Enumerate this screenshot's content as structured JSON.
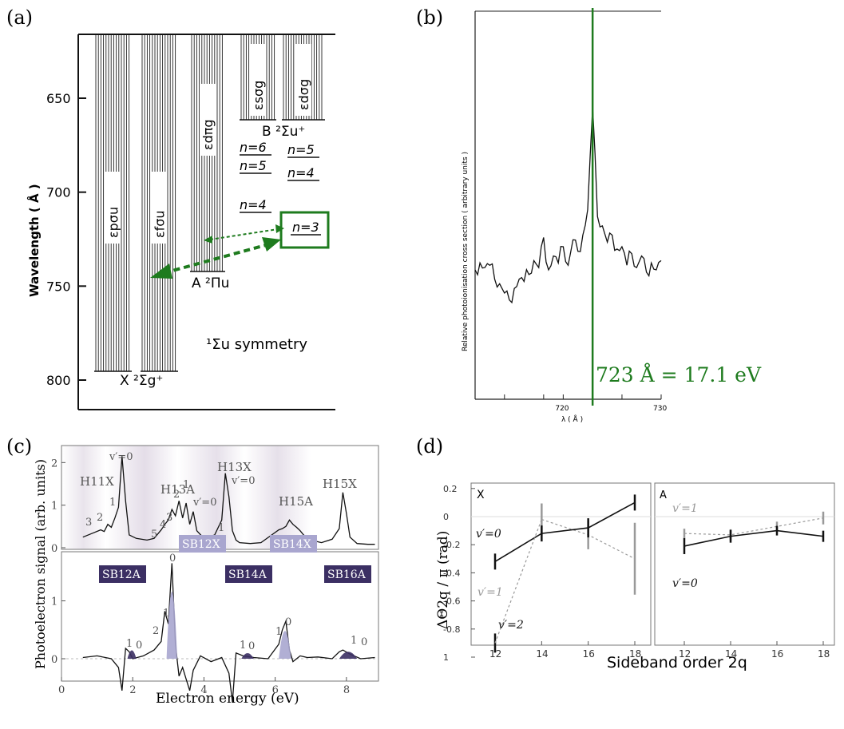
{
  "panels": {
    "a": {
      "label": "(a)",
      "ylabel": "Wavelength ( Å )",
      "yticks": [
        "650",
        "700",
        "750",
        "800"
      ],
      "ytick_values": [
        650,
        700,
        750,
        800
      ],
      "continua": [
        "εpσu",
        "εfσu",
        "εdπg",
        "εsσg",
        "εdσg"
      ],
      "state_X": "X ²Σg⁺",
      "state_A": "A ²Πu",
      "state_B": "B ²Σu⁺",
      "rydberg_left": [
        "n=6",
        "n=5",
        "n=4"
      ],
      "rydberg_right": [
        "n=5",
        "n=4",
        "n=3"
      ],
      "symmetry": "¹Σu symmetry",
      "highlight": "n=3",
      "accent": "#1e7b1e"
    },
    "b": {
      "label": "(b)",
      "ylabel": "Relative photoionisation cross section ( arbitrary units )",
      "xlabel": "λ ( Å )",
      "xticks": [
        "720",
        "730"
      ],
      "annotation": "723 Å = 17.1 eV",
      "accent": "#1e7b1e"
    },
    "c": {
      "label": "(c)",
      "ylabel": "Photoelectron signal (arb. units)",
      "xlabel": "Electron energy (eV)",
      "xticks": [
        "0",
        "2",
        "4",
        "6",
        "8"
      ],
      "top_yticks": [
        "0",
        "1",
        "2"
      ],
      "bottom_yticks": [
        "0",
        "1"
      ],
      "harmonics": [
        "H11X",
        "H13A",
        "H13X",
        "H15A",
        "H15X"
      ],
      "vib_labels": [
        "3",
        "2",
        "1",
        "v′=0",
        "5",
        "4",
        "3",
        "2",
        "1",
        "v′=0",
        "v′=0",
        "1"
      ],
      "sidebands_dark": [
        "SB12A",
        "SB14A",
        "SB16A"
      ],
      "sidebands_light": [
        "SB12X",
        "SB14X"
      ],
      "sb_vib": [
        "1",
        "0",
        "2",
        "1",
        "0",
        "1",
        "0",
        "1",
        "0",
        "1",
        "0"
      ],
      "dark_color": "#3b2f63",
      "light_color": "#a9a6cf"
    },
    "d": {
      "label": "(d)",
      "ylabel": "ΔΘ2q / π  (rad)",
      "xlabel": "Sideband order 2q",
      "subpanels": [
        "X",
        "A"
      ],
      "xticks": [
        "12",
        "14",
        "16",
        "18"
      ],
      "yticks": [
        "0.2",
        "0",
        "-0.2",
        "-0.4",
        "-0.6",
        "-0.8",
        "1"
      ],
      "labels_X": [
        "v′=0",
        "v′=1",
        "v′=2"
      ],
      "labels_A": [
        "v′=1",
        "v′=0"
      ]
    }
  },
  "chart_data": [
    {
      "type": "line",
      "panel": "b",
      "xlabel": "λ ( Å )",
      "ylabel": "Relative photoionisation cross section ( arbitrary units )",
      "xlim": [
        711,
        730
      ],
      "peak_x": 723,
      "annotation": "723 Å = 17.1 eV",
      "x": [
        711,
        711.5,
        712,
        712.5,
        713,
        713.5,
        714,
        714.5,
        715,
        715.5,
        716,
        716.5,
        717,
        717.5,
        718,
        718.5,
        719,
        719.5,
        720,
        720.5,
        721,
        721.5,
        722,
        722.5,
        723,
        723.5,
        724,
        724.5,
        725,
        725.5,
        726,
        726.5,
        727,
        727.5,
        728,
        728.5,
        729,
        729.5,
        730
      ],
      "y": [
        0.3,
        0.33,
        0.31,
        0.32,
        0.26,
        0.24,
        0.2,
        0.17,
        0.22,
        0.26,
        0.25,
        0.28,
        0.34,
        0.31,
        0.44,
        0.3,
        0.36,
        0.33,
        0.4,
        0.32,
        0.43,
        0.38,
        0.45,
        0.56,
        1.0,
        0.53,
        0.49,
        0.42,
        0.45,
        0.39,
        0.4,
        0.32,
        0.37,
        0.31,
        0.36,
        0.29,
        0.33,
        0.3,
        0.34
      ]
    },
    {
      "type": "line",
      "panel": "c-top",
      "xlabel": "Electron energy (eV)",
      "ylabel": "Photoelectron signal (arb. units)",
      "xlim": [
        0,
        8.8
      ],
      "ylim": [
        0,
        2.4
      ],
      "x": [
        0.6,
        0.9,
        1.1,
        1.2,
        1.3,
        1.4,
        1.5,
        1.6,
        1.7,
        1.8,
        1.9,
        2.1,
        2.4,
        2.6,
        2.8,
        2.9,
        3.0,
        3.1,
        3.2,
        3.3,
        3.4,
        3.5,
        3.6,
        3.7,
        3.8,
        4.0,
        4.3,
        4.5,
        4.6,
        4.7,
        4.8,
        4.9,
        5.0,
        5.3,
        5.6,
        5.9,
        6.1,
        6.2,
        6.3,
        6.4,
        6.5,
        6.6,
        6.7,
        6.8,
        7.0,
        7.3,
        7.6,
        7.8,
        7.9,
        8.0,
        8.1,
        8.3,
        8.6,
        8.8
      ],
      "y": [
        0.25,
        0.35,
        0.42,
        0.38,
        0.55,
        0.48,
        0.7,
        0.95,
        2.15,
        1.1,
        0.3,
        0.22,
        0.18,
        0.22,
        0.42,
        0.55,
        0.65,
        0.9,
        0.75,
        1.1,
        0.7,
        1.05,
        0.55,
        0.85,
        0.4,
        0.22,
        0.3,
        0.65,
        1.75,
        1.2,
        0.4,
        0.18,
        0.12,
        0.1,
        0.12,
        0.3,
        0.42,
        0.45,
        0.5,
        0.65,
        0.55,
        0.48,
        0.4,
        0.3,
        0.18,
        0.12,
        0.2,
        0.45,
        1.3,
        0.8,
        0.25,
        0.1,
        0.08,
        0.08
      ]
    },
    {
      "type": "line",
      "panel": "c-bottom",
      "xlabel": "Electron energy (eV)",
      "ylim": [
        -0.7,
        1.7
      ],
      "x": [
        0.6,
        1.0,
        1.4,
        1.6,
        1.7,
        1.8,
        1.9,
        2.0,
        2.3,
        2.6,
        2.8,
        2.9,
        3.0,
        3.1,
        3.2,
        3.3,
        3.4,
        3.5,
        3.6,
        3.7,
        3.9,
        4.2,
        4.5,
        4.7,
        4.8,
        4.9,
        5.1,
        5.4,
        5.8,
        6.1,
        6.2,
        6.3,
        6.4,
        6.5,
        6.7,
        6.9,
        7.2,
        7.6,
        7.8,
        7.9,
        8.1,
        8.4,
        8.8
      ],
      "y": [
        0.02,
        0.05,
        0.0,
        -0.15,
        -0.55,
        0.18,
        0.12,
        0.0,
        0.05,
        0.15,
        0.3,
        0.82,
        0.6,
        1.65,
        0.25,
        -0.3,
        -0.15,
        -0.35,
        -0.55,
        -0.2,
        0.05,
        -0.05,
        0.02,
        -0.25,
        -0.75,
        0.1,
        0.05,
        0.02,
        0.0,
        0.25,
        0.5,
        0.65,
        0.15,
        -0.05,
        0.05,
        0.02,
        0.03,
        0.0,
        0.12,
        0.15,
        0.08,
        0.0,
        0.02
      ]
    },
    {
      "type": "line",
      "panel": "d-X",
      "xlabel": "Sideband order 2q",
      "ylabel": "ΔΘ2q / π  (rad)",
      "x": [
        12,
        14,
        16,
        18
      ],
      "series": [
        {
          "name": "v′=0",
          "values": [
            -0.32,
            -0.12,
            -0.08,
            0.1
          ]
        },
        {
          "name": "v′=1",
          "values": [
            null,
            -0.02,
            -0.13,
            -0.3
          ]
        },
        {
          "name": "v′=2",
          "values": [
            -0.9,
            null,
            null,
            null
          ]
        }
      ]
    },
    {
      "type": "line",
      "panel": "d-A",
      "xlabel": "Sideband order 2q",
      "x": [
        12,
        14,
        16,
        18
      ],
      "series": [
        {
          "name": "v′=0",
          "values": [
            -0.21,
            -0.14,
            -0.1,
            -0.14
          ]
        },
        {
          "name": "v′=1",
          "values": [
            -0.12,
            -0.13,
            -0.07,
            -0.01
          ]
        }
      ]
    }
  ]
}
